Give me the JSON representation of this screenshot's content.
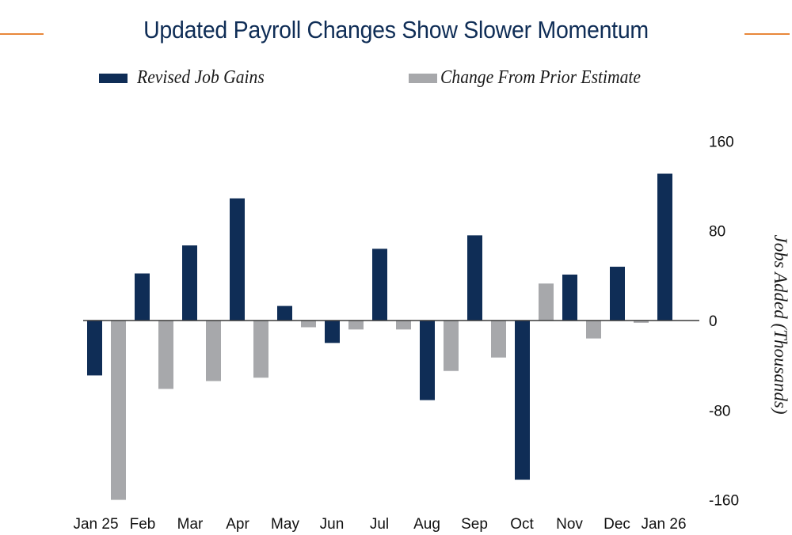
{
  "colors": {
    "revised": "#0f2d56",
    "change": "#a7a8ab",
    "accent_rule": "#e8873a",
    "axis": "#3a3a3a"
  },
  "chart_data": {
    "type": "bar",
    "title": "Updated Payroll Changes Show Slower Momentum",
    "xlabel": "",
    "ylabel": "Jobs Added (Thousands)",
    "ylim": [
      -160,
      160
    ],
    "yticks": [
      160,
      80,
      0,
      -80,
      -160
    ],
    "ytick_labels": [
      "160",
      "80",
      "0",
      "-80",
      "-160"
    ],
    "y_axis_position": "right",
    "grid": false,
    "legend_position": "top",
    "categories": [
      "Jan 25",
      "Feb",
      "Mar",
      "Apr",
      "May",
      "Jun",
      "Jul",
      "Aug",
      "Sep",
      "Oct",
      "Nov",
      "Dec",
      "Jan 26"
    ],
    "series": [
      {
        "name": "Revised Job Gains",
        "color_key": "revised",
        "values": [
          -49,
          42,
          67,
          109,
          13,
          -20,
          64,
          -71,
          76,
          -142,
          41,
          48,
          131
        ]
      },
      {
        "name": "Change From Prior Estimate",
        "color_key": "change",
        "values": [
          -160,
          -61,
          -54,
          -51,
          -6,
          -8,
          -8,
          -45,
          -33,
          33,
          -16,
          -2,
          null
        ]
      }
    ]
  }
}
